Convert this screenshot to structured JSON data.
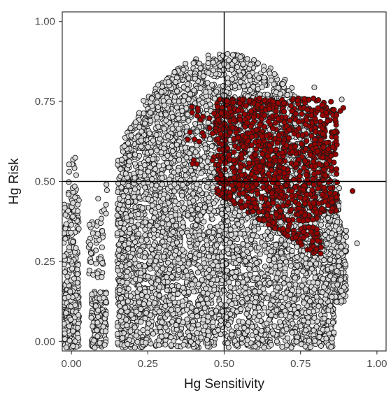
{
  "chart_data": {
    "type": "scatter",
    "title": "",
    "xlabel": "Hg Sensitivity",
    "ylabel": "Hg Risk",
    "xlim": [
      -0.03,
      1.03
    ],
    "ylim": [
      -0.03,
      1.03
    ],
    "xticks": [
      0.0,
      0.25,
      0.5,
      0.75,
      1.0
    ],
    "xtick_labels": [
      "0.00",
      "0.25",
      "0.50",
      "0.75",
      "1.00"
    ],
    "yticks": [
      0.0,
      0.25,
      0.5,
      0.75,
      1.0
    ],
    "ytick_labels": [
      "0.00",
      "0.25",
      "0.50",
      "0.75",
      "1.00"
    ],
    "grid": false,
    "reference_lines": {
      "x": 0.5,
      "y": 0.5
    },
    "legend": "none",
    "series": [
      {
        "marker_fill": "#d9d9d9",
        "marker_edge": "#1a1a1a"
      },
      {
        "marker_fill": "#990000",
        "marker_edge": "#1a1a1a"
      }
    ]
  }
}
